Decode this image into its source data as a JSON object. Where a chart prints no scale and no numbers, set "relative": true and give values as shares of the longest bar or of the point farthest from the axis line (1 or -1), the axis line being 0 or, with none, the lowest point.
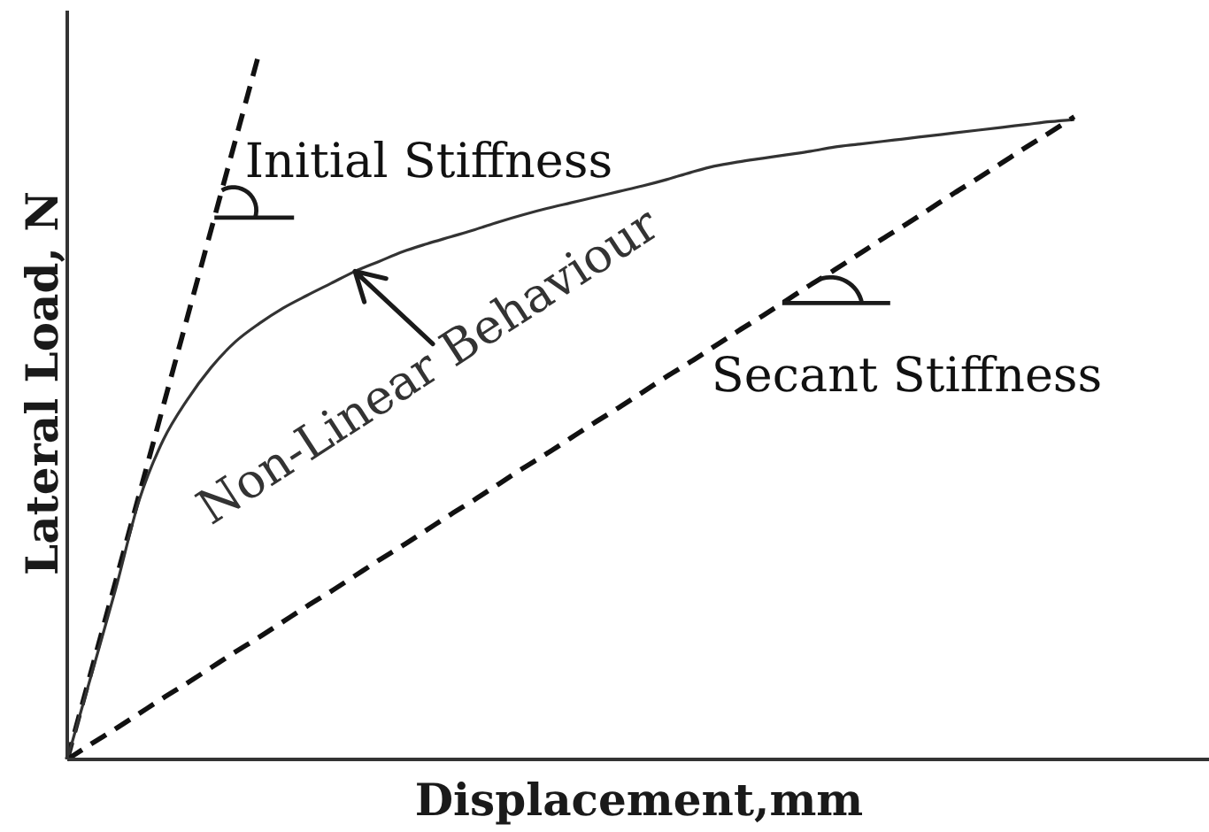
{
  "chart_data": {
    "type": "line",
    "relative": true,
    "tick_labels": false,
    "xlabel": "Displacement,mm",
    "ylabel": "Lateral Load, N",
    "categories": [
      null,
      null,
      null,
      null,
      null,
      null,
      null,
      null,
      null,
      null,
      null,
      null,
      null,
      null,
      null,
      null,
      null,
      null,
      null,
      null,
      null,
      null,
      null,
      null,
      null,
      null,
      null,
      null,
      null,
      null,
      null,
      null,
      null,
      null,
      null,
      null,
      null,
      null,
      null,
      null,
      null,
      null,
      null
    ],
    "series": [
      {
        "name": "Initial Stiffness",
        "color": "#111111",
        "line_style": "dashed",
        "values": [
          0,
          0.125,
          0.25,
          0.375,
          0.5,
          0.625,
          0.75,
          0.875,
          1,
          null,
          null,
          null,
          null,
          null,
          null,
          null,
          null,
          null,
          null,
          null,
          null,
          null,
          null,
          null,
          null,
          null,
          null,
          null,
          null,
          null,
          null,
          null,
          null,
          null,
          null,
          null,
          null,
          null,
          null,
          null,
          null,
          null,
          null
        ]
      },
      {
        "name": "Non-Linear Behaviour",
        "color": "#333333",
        "line_style": "solid",
        "values": [
          0,
          0.119,
          0.239,
          0.367,
          0.452,
          0.509,
          0.555,
          0.591,
          0.617,
          0.639,
          0.657,
          0.674,
          0.691,
          0.705,
          0.719,
          0.73,
          0.74,
          0.75,
          0.761,
          0.771,
          0.78,
          0.788,
          0.796,
          0.804,
          0.812,
          0.821,
          0.831,
          0.84,
          0.846,
          0.851,
          0.856,
          0.861,
          0.867,
          0.871,
          0.875,
          0.879,
          0.883,
          0.887,
          0.891,
          0.895,
          0.899,
          0.903,
          0.906
        ]
      },
      {
        "name": "Secant Stiffness",
        "color": "#111111",
        "line_style": "dashed",
        "values": [
          0,
          0.022,
          0.043,
          0.065,
          0.087,
          0.108,
          0.13,
          0.152,
          0.173,
          0.195,
          0.217,
          0.238,
          0.26,
          0.282,
          0.303,
          0.325,
          0.347,
          0.368,
          0.39,
          0.412,
          0.433,
          0.455,
          0.477,
          0.498,
          0.52,
          0.542,
          0.563,
          0.585,
          0.607,
          0.628,
          0.65,
          0.672,
          0.693,
          0.715,
          0.737,
          0.758,
          0.78,
          0.802,
          0.823,
          0.845,
          0.867,
          0.888,
          0.91
        ]
      }
    ]
  }
}
